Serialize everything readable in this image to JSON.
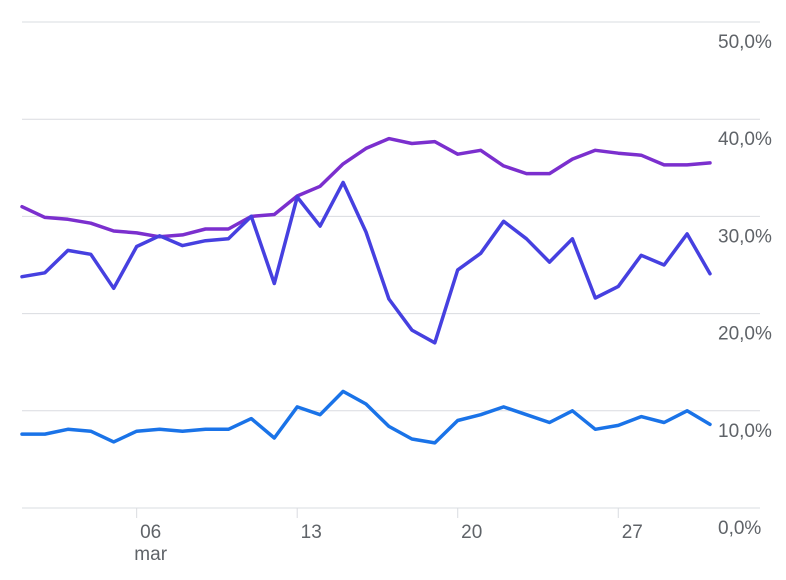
{
  "chart_data": {
    "type": "line",
    "title": "",
    "xlabel": "",
    "ylabel": "",
    "ylim": [
      0,
      50
    ],
    "grid": true,
    "legend": "none",
    "y_ticks": [
      {
        "value": 0,
        "label": "0,0%"
      },
      {
        "value": 10,
        "label": "10,0%"
      },
      {
        "value": 20,
        "label": "20,0%"
      },
      {
        "value": 30,
        "label": "30,0%"
      },
      {
        "value": 40,
        "label": "40,0%"
      },
      {
        "value": 50,
        "label": "50,0%"
      }
    ],
    "x_range": [
      1,
      31
    ],
    "x_ticks": [
      {
        "x": 6,
        "label": "06",
        "sublabel": "mar"
      },
      {
        "x": 13,
        "label": "13",
        "sublabel": ""
      },
      {
        "x": 20,
        "label": "20",
        "sublabel": ""
      },
      {
        "x": 27,
        "label": "27",
        "sublabel": ""
      }
    ],
    "x": [
      1,
      2,
      3,
      4,
      5,
      6,
      7,
      8,
      9,
      10,
      11,
      12,
      13,
      14,
      15,
      16,
      17,
      18,
      19,
      20,
      21,
      22,
      23,
      24,
      25,
      26,
      27,
      28,
      29,
      30,
      31
    ],
    "series": [
      {
        "color": "#7b2fce",
        "values": [
          31.0,
          29.9,
          29.7,
          29.3,
          28.5,
          28.3,
          27.9,
          28.1,
          28.7,
          28.7,
          30.0,
          30.2,
          32.1,
          33.1,
          35.4,
          37.0,
          38.0,
          37.5,
          37.7,
          36.4,
          36.8,
          35.2,
          34.4,
          34.4,
          35.9,
          36.8,
          36.5,
          36.3,
          35.3,
          35.3,
          35.5
        ]
      },
      {
        "color": "#4640e0",
        "values": [
          23.8,
          24.2,
          26.5,
          26.1,
          22.6,
          26.9,
          28.0,
          27.0,
          27.5,
          27.7,
          30.0,
          23.1,
          32.0,
          29.0,
          33.5,
          28.4,
          21.5,
          18.3,
          17.0,
          24.5,
          26.2,
          29.5,
          27.7,
          25.3,
          27.7,
          21.6,
          22.8,
          26.0,
          25.0,
          28.2,
          24.1
        ]
      },
      {
        "color": "#1a73e8",
        "values": [
          7.6,
          7.6,
          8.1,
          7.9,
          6.8,
          7.9,
          8.1,
          7.9,
          8.1,
          8.1,
          9.2,
          7.2,
          10.4,
          9.6,
          12.0,
          10.7,
          8.4,
          7.1,
          6.7,
          9.0,
          9.6,
          10.4,
          9.6,
          8.8,
          10.0,
          8.1,
          8.5,
          9.4,
          8.8,
          10.0,
          8.6
        ]
      }
    ]
  }
}
